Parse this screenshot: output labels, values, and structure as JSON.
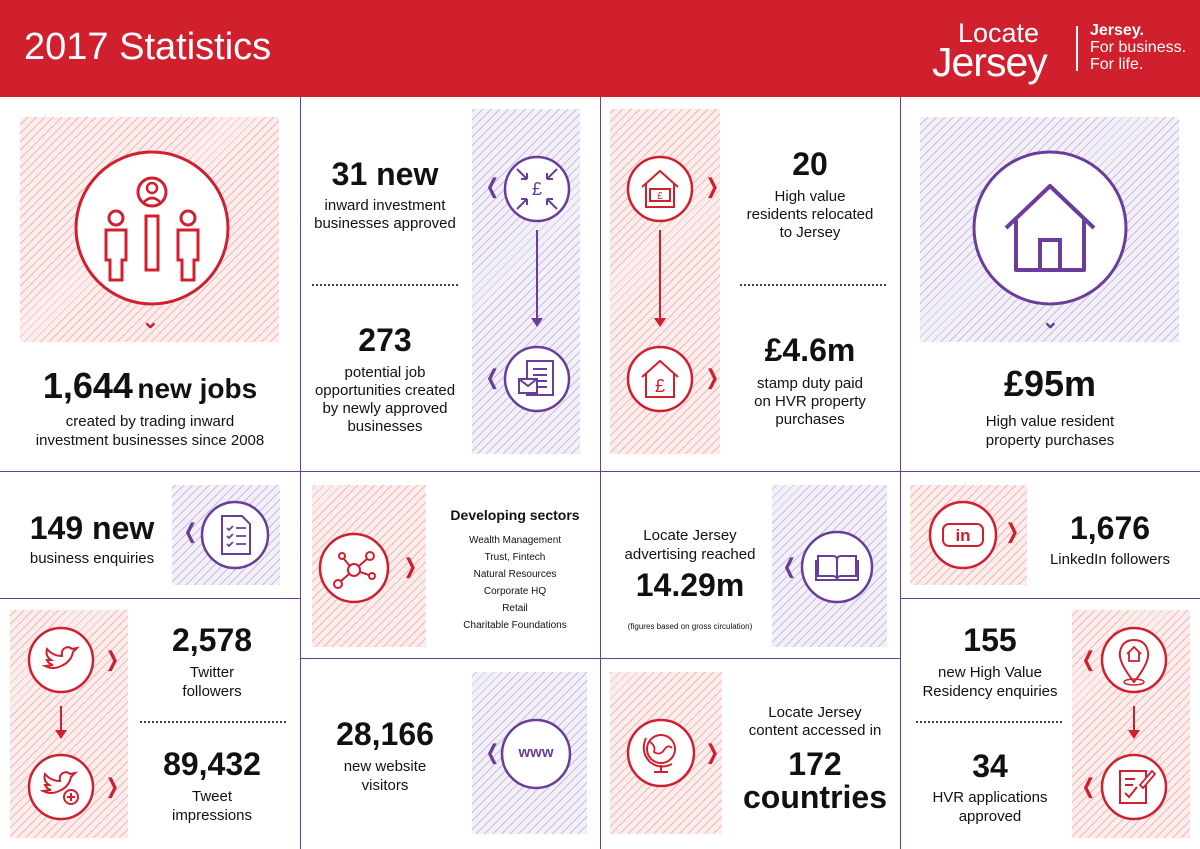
{
  "header": {
    "title": "2017 Statistics",
    "logo_locate": "Locate",
    "logo_jersey": "Jersey",
    "tagline_1": "Jersey.",
    "tagline_2": "For business.",
    "tagline_3": "For life."
  },
  "stats": {
    "jobs": {
      "number": "1,644",
      "unit": "new jobs",
      "desc_1": "created by trading inward",
      "desc_2": "investment businesses since 2008"
    },
    "inward": {
      "number": "31 new",
      "desc_1": "inward investment",
      "desc_2": "businesses approved"
    },
    "potential": {
      "number": "273",
      "desc_1": "potential job",
      "desc_2": "opportunities created",
      "desc_3": "by newly approved",
      "desc_4": "businesses"
    },
    "hv_residents": {
      "number": "20",
      "desc_1": "High value",
      "desc_2": "residents relocated",
      "desc_3": "to Jersey"
    },
    "stamp_duty": {
      "number": "£4.6m",
      "desc_1": "stamp duty paid",
      "desc_2": "on HVR property",
      "desc_3": "purchases"
    },
    "property": {
      "number": "£95m",
      "desc_1": "High value resident",
      "desc_2": "property purchases"
    },
    "enquiries": {
      "number": "149 new",
      "desc_1": "business enquiries"
    },
    "sectors": {
      "title": "Developing sectors",
      "items": [
        "Wealth Management",
        "Trust, Fintech",
        "Natural Resources",
        "Corporate HQ",
        "Retail",
        "Charitable Foundations"
      ]
    },
    "advertising": {
      "desc_1": "Locate Jersey",
      "desc_2": "advertising reached",
      "number": "14.29m",
      "note": "(figures based on gross circulation)"
    },
    "linkedin": {
      "number": "1,676",
      "desc_1": "LinkedIn followers"
    },
    "twitter": {
      "number": "2,578",
      "desc_1": "Twitter",
      "desc_2": "followers"
    },
    "tweets": {
      "number": "89,432",
      "desc_1": "Tweet",
      "desc_2": "impressions"
    },
    "website": {
      "number": "28,166",
      "desc_1": "new website",
      "desc_2": "visitors"
    },
    "countries": {
      "desc_1": "Locate Jersey",
      "desc_2": "content accessed in",
      "number": "172",
      "unit": "countries"
    },
    "hvr_enquiries": {
      "number": "155",
      "desc_1": "new High Value",
      "desc_2": "Residency enquiries"
    },
    "hvr_applications": {
      "number": "34",
      "desc_1": "HVR applications",
      "desc_2": "approved"
    }
  },
  "icons": {
    "chevron": "❭",
    "chevron_left": "❬",
    "chevron_down": "⌄",
    "www": "www"
  },
  "colors": {
    "brand_red": "#d0202e",
    "purple": "#6a3d9a"
  }
}
